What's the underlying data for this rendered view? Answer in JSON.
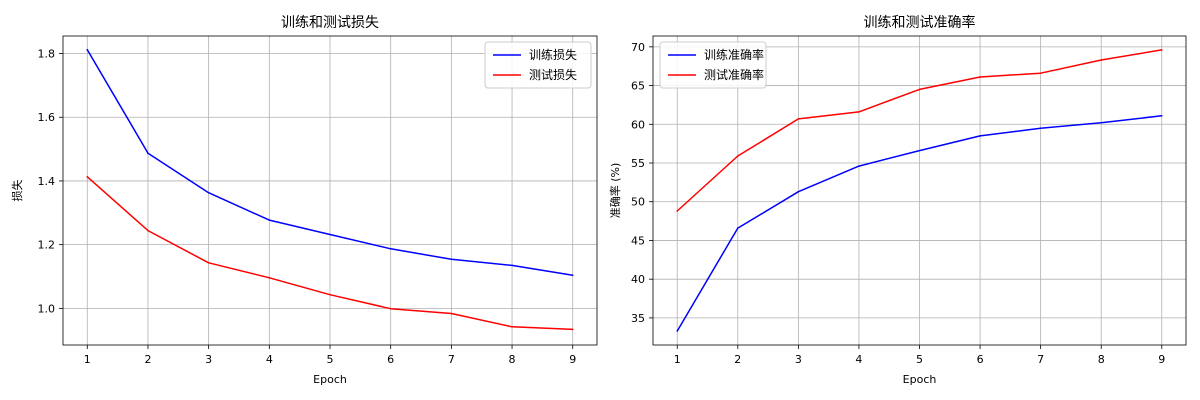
{
  "chart_data": [
    {
      "type": "line",
      "title": "训练和测试损失",
      "xlabel": "Epoch",
      "ylabel": "损失",
      "x": [
        1,
        2,
        3,
        4,
        5,
        6,
        7,
        8,
        9
      ],
      "xlim": [
        0.6,
        9.4
      ],
      "ylim": [
        0.885,
        1.855
      ],
      "yticks": [
        1.0,
        1.2,
        1.4,
        1.6,
        1.8
      ],
      "ytick_labels": [
        "1.0",
        "1.2",
        "1.4",
        "1.6",
        "1.8"
      ],
      "grid": true,
      "legend_position": "top-right",
      "series": [
        {
          "name": "训练损失",
          "color": "#0000ff",
          "values": [
            1.812,
            1.487,
            1.363,
            1.277,
            1.232,
            1.187,
            1.154,
            1.135,
            1.104
          ]
        },
        {
          "name": "测试损失",
          "color": "#ff0000",
          "values": [
            1.413,
            1.244,
            1.143,
            1.096,
            1.043,
            0.999,
            0.984,
            0.942,
            0.934
          ]
        }
      ]
    },
    {
      "type": "line",
      "title": "训练和测试准确率",
      "xlabel": "Epoch",
      "ylabel": "准确率 (%)",
      "x": [
        1,
        2,
        3,
        4,
        5,
        6,
        7,
        8,
        9
      ],
      "xlim": [
        0.6,
        9.4
      ],
      "ylim": [
        31.5,
        71.4
      ],
      "yticks": [
        35,
        40,
        45,
        50,
        55,
        60,
        65,
        70
      ],
      "ytick_labels": [
        "35",
        "40",
        "45",
        "50",
        "55",
        "60",
        "65",
        "70"
      ],
      "grid": true,
      "legend_position": "top-left",
      "series": [
        {
          "name": "训练准确率",
          "color": "#0000ff",
          "values": [
            33.3,
            46.6,
            51.3,
            54.6,
            56.6,
            58.5,
            59.5,
            60.2,
            61.1
          ]
        },
        {
          "name": "测试准确率",
          "color": "#ff0000",
          "values": [
            48.8,
            55.9,
            60.7,
            61.6,
            64.5,
            66.1,
            66.6,
            68.3,
            69.6
          ]
        }
      ]
    }
  ]
}
